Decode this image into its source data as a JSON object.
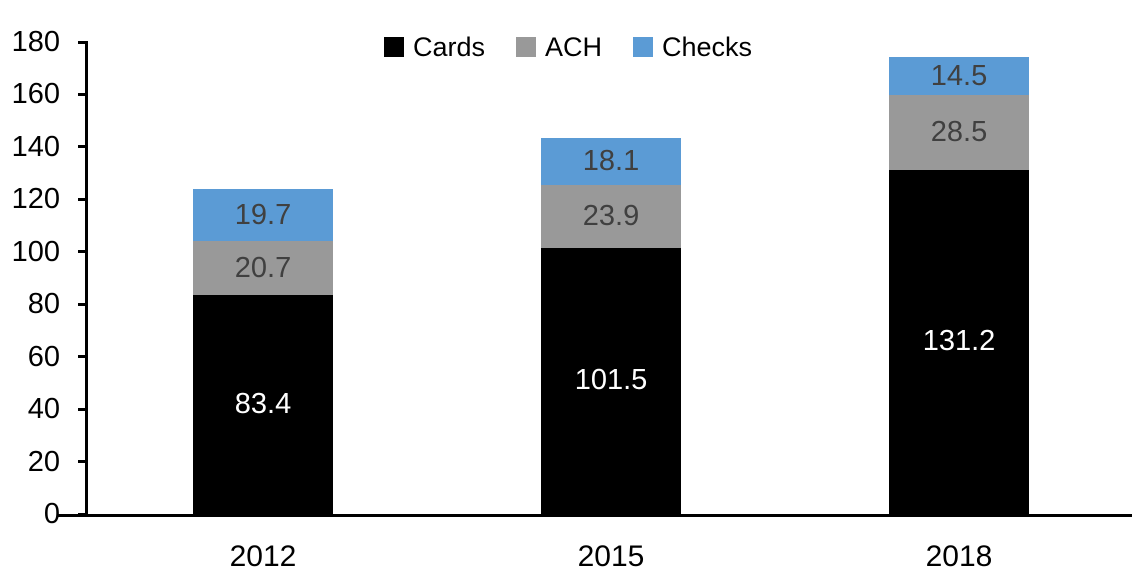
{
  "chart_data": {
    "type": "bar",
    "stacked": true,
    "title": "",
    "xlabel": "",
    "ylabel": "",
    "categories": [
      "2012",
      "2015",
      "2018"
    ],
    "series": [
      {
        "name": "Cards",
        "color": "#000000",
        "label_color": "#FFFFFF",
        "values": [
          83.4,
          101.5,
          131.2
        ]
      },
      {
        "name": "ACH",
        "color": "#999999",
        "label_color": "#404040",
        "values": [
          20.7,
          23.9,
          28.5
        ]
      },
      {
        "name": "Checks",
        "color": "#5B9BD5",
        "label_color": "#404040",
        "values": [
          19.7,
          18.1,
          14.5
        ]
      }
    ],
    "totals": [
      123.8,
      143.5,
      174.2
    ],
    "ylim": [
      0,
      180
    ],
    "ytick_step": 20,
    "ytick_labels": [
      "0",
      "20",
      "40",
      "60",
      "80",
      "100",
      "120",
      "140",
      "160",
      "180"
    ],
    "legend_position": "top-center",
    "grid": false,
    "data_labels": true,
    "axis_color": "#000000",
    "background": "#FFFFFF"
  }
}
